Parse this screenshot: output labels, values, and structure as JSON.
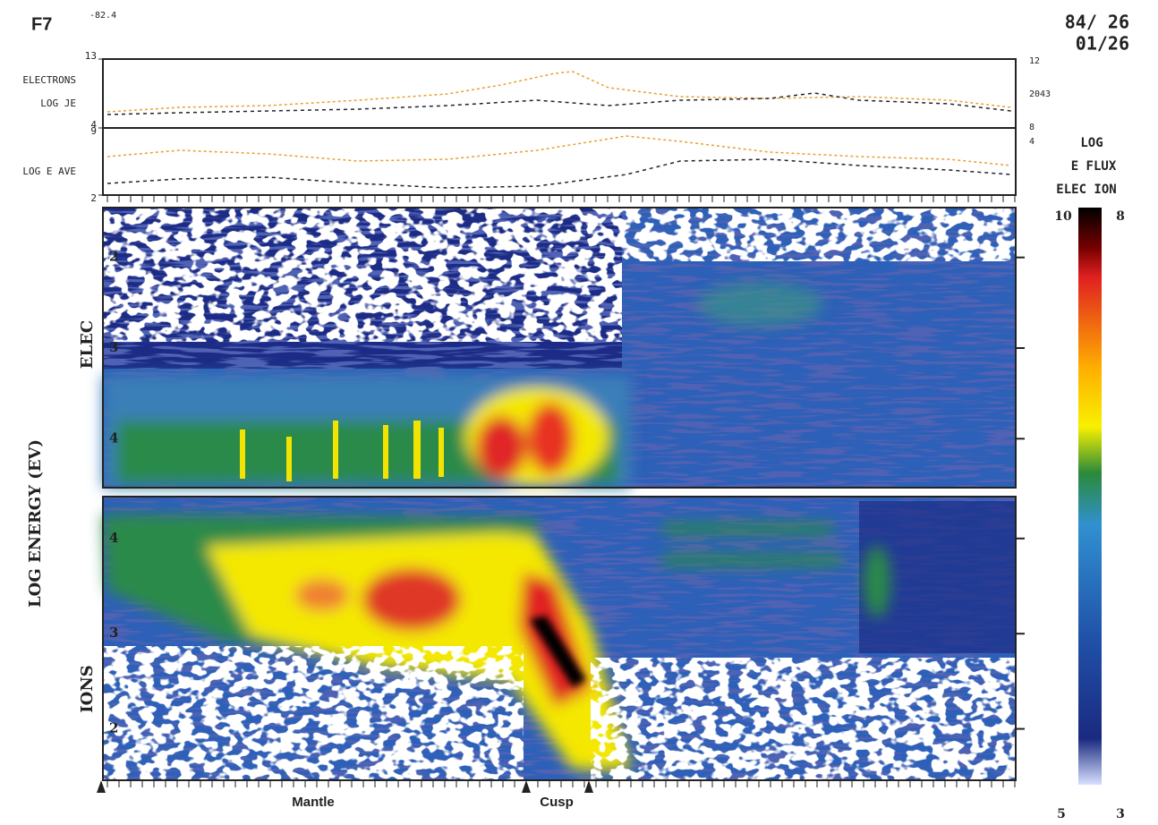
{
  "chart_data": {
    "type": "spectrogram",
    "header": {
      "satellite": "F7",
      "value": "-82.4",
      "date_line1": "84/ 26",
      "date_line2": "01/26"
    },
    "line_panels": [
      {
        "labels": [
          "ELECTRONS",
          "LOG JE"
        ],
        "ylim": [
          9,
          13
        ],
        "yticks": [
          9,
          13
        ],
        "right_labels": [
          "12",
          "2043",
          "8"
        ]
      },
      {
        "labels": [
          "LOG E AVE"
        ],
        "ylim": [
          2,
          4
        ],
        "yticks": [
          2,
          4
        ],
        "right_labels": [
          "4"
        ]
      }
    ],
    "axis_label": "LOG ENERGY (EV)",
    "electrons": {
      "label": "ELEC",
      "ylim": [
        4.54,
        1.45
      ],
      "yticks": [
        2,
        3,
        4
      ]
    },
    "ions": {
      "label": "IONS",
      "ylim": [
        1.46,
        4.44
      ],
      "yticks": [
        2,
        3,
        4
      ]
    },
    "colorbar": {
      "title": [
        "LOG",
        "E FLUX",
        "ELEC ION"
      ],
      "electron_range": [
        5,
        10
      ],
      "ion_range": [
        3,
        8
      ]
    },
    "annotations": [
      "Mantle",
      "Cusp"
    ]
  }
}
